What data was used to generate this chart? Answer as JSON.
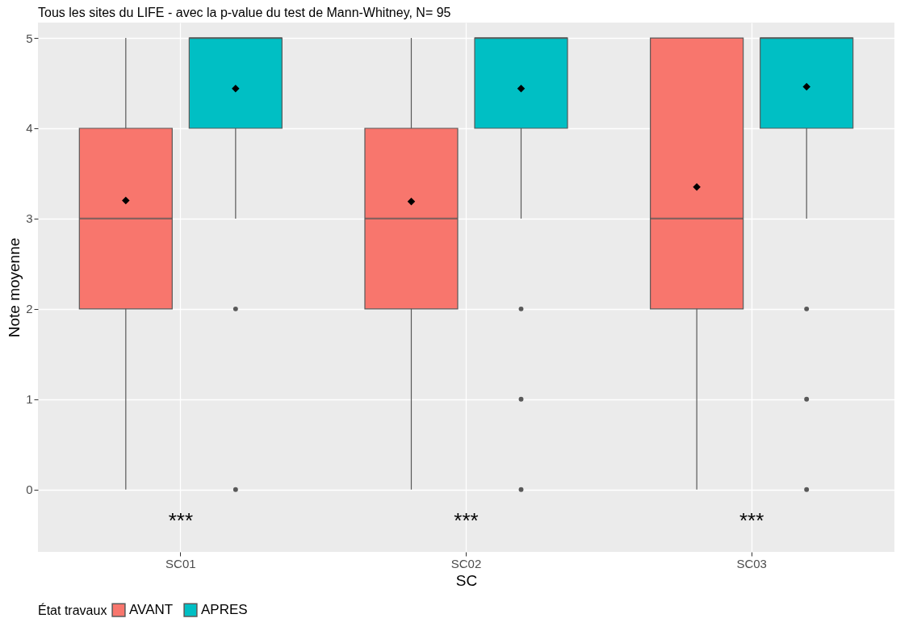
{
  "chart_data": {
    "type": "box",
    "title": "Tous les sites du LIFE - avec la p-value du test de Mann-Whitney, N= 95",
    "xlabel": "SC",
    "ylabel": "Note moyenne",
    "legend_title": "État travaux",
    "legend": "bottom",
    "grid": true,
    "categories": [
      "SC01",
      "SC02",
      "SC03"
    ],
    "ylim": [
      -0.69,
      5.17
    ],
    "yticks": [
      0,
      1,
      2,
      3,
      4,
      5
    ],
    "series": [
      {
        "name": "AVANT",
        "color": "#f8766d",
        "boxes": [
          {
            "low": 0,
            "q1": 2,
            "median": 3,
            "q3": 4,
            "high": 5,
            "mean": 3.2
          },
          {
            "low": 0,
            "q1": 2,
            "median": 3,
            "q3": 4,
            "high": 5,
            "mean": 3.19
          },
          {
            "low": 0,
            "q1": 2,
            "median": 3,
            "q3": 5,
            "high": 5,
            "mean": 3.35
          }
        ]
      },
      {
        "name": "APRES",
        "color": "#00bfc4",
        "boxes": [
          {
            "low": 3,
            "q1": 4,
            "median": 5,
            "q3": 5,
            "high": 5,
            "mean": 4.44,
            "outliers": [
              2,
              0
            ]
          },
          {
            "low": 3,
            "q1": 4,
            "median": 5,
            "q3": 5,
            "high": 5,
            "mean": 4.44,
            "outliers": [
              2,
              1,
              0
            ]
          },
          {
            "low": 3,
            "q1": 4,
            "median": 5,
            "q3": 5,
            "high": 5,
            "mean": 4.46,
            "outliers": [
              2,
              1,
              0
            ]
          }
        ]
      }
    ],
    "annotations": [
      "***",
      "***",
      "***"
    ]
  }
}
